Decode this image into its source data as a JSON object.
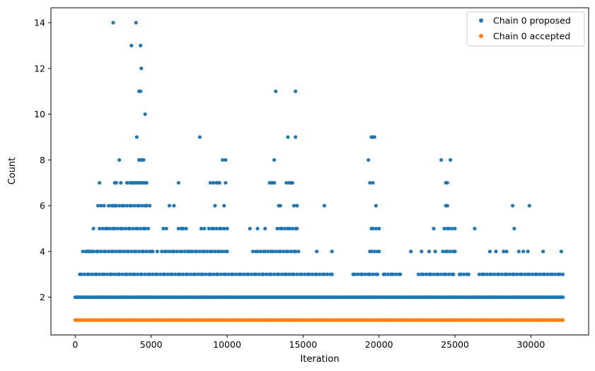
{
  "chart_data": {
    "type": "scatter",
    "title": "",
    "xlabel": "Iteration",
    "ylabel": "Count",
    "xlim": [
      -1600,
      33800
    ],
    "ylim": [
      0.35,
      14.65
    ],
    "xticks": [
      0,
      5000,
      10000,
      15000,
      20000,
      25000,
      30000
    ],
    "yticks": [
      2,
      4,
      6,
      8,
      10,
      12,
      14
    ],
    "grid": false,
    "legend_position": "top-right",
    "iterations_max": 32100,
    "series": [
      {
        "name": "Chain 0 proposed",
        "color": "#1f77b4",
        "baseline": {
          "x_range": [
            0,
            32100
          ],
          "values": [
            1,
            2
          ]
        },
        "bands": [
          {
            "value": 3,
            "x_ranges": [
              [
                200,
                15500
              ],
              [
                15600,
                17000
              ],
              [
                18200,
                20000
              ],
              [
                20300,
                21400
              ],
              [
                22500,
                25000
              ],
              [
                25300,
                26000
              ],
              [
                26500,
                32100
              ]
            ]
          },
          {
            "value": 4,
            "x_ranges": [
              [
                700,
                5000
              ],
              [
                5800,
                10000
              ],
              [
                11600,
                14700
              ],
              [
                19300,
                20000
              ],
              [
                24200,
                25000
              ]
            ]
          },
          {
            "value": 5,
            "x_ranges": [
              [
                1600,
                4800
              ],
              [
                6800,
                7300
              ],
              [
                8800,
                10000
              ],
              [
                13200,
                14600
              ],
              [
                19400,
                20000
              ],
              [
                24300,
                25000
              ]
            ]
          },
          {
            "value": 6,
            "x_ranges": [
              [
                2400,
                5000
              ],
              [
                14300,
                14600
              ]
            ]
          }
        ],
        "points": [
          {
            "x": 500,
            "y": 4
          },
          {
            "x": 800,
            "y": 4
          },
          {
            "x": 1100,
            "y": 4
          },
          {
            "x": 1200,
            "y": 5
          },
          {
            "x": 1500,
            "y": 6
          },
          {
            "x": 1600,
            "y": 7
          },
          {
            "x": 1700,
            "y": 6
          },
          {
            "x": 1900,
            "y": 6
          },
          {
            "x": 2100,
            "y": 5
          },
          {
            "x": 2200,
            "y": 6
          },
          {
            "x": 2500,
            "y": 6
          },
          {
            "x": 2600,
            "y": 7
          },
          {
            "x": 2700,
            "y": 7
          },
          {
            "x": 2900,
            "y": 8
          },
          {
            "x": 3000,
            "y": 7
          },
          {
            "x": 3400,
            "y": 7
          },
          {
            "x": 3600,
            "y": 7
          },
          {
            "x": 3700,
            "y": 7
          },
          {
            "x": 3800,
            "y": 7
          },
          {
            "x": 3900,
            "y": 7
          },
          {
            "x": 4000,
            "y": 7
          },
          {
            "x": 4100,
            "y": 7
          },
          {
            "x": 4200,
            "y": 7
          },
          {
            "x": 4300,
            "y": 7
          },
          {
            "x": 4400,
            "y": 7
          },
          {
            "x": 4500,
            "y": 7
          },
          {
            "x": 4600,
            "y": 7
          },
          {
            "x": 4700,
            "y": 7
          },
          {
            "x": 4200,
            "y": 8
          },
          {
            "x": 4300,
            "y": 8
          },
          {
            "x": 4400,
            "y": 8
          },
          {
            "x": 4500,
            "y": 8
          },
          {
            "x": 2500,
            "y": 14
          },
          {
            "x": 3700,
            "y": 13
          },
          {
            "x": 4000,
            "y": 14
          },
          {
            "x": 4050,
            "y": 9
          },
          {
            "x": 4200,
            "y": 11
          },
          {
            "x": 4300,
            "y": 11
          },
          {
            "x": 4300,
            "y": 13
          },
          {
            "x": 4350,
            "y": 12
          },
          {
            "x": 4600,
            "y": 10
          },
          {
            "x": 5100,
            "y": 4
          },
          {
            "x": 5400,
            "y": 4
          },
          {
            "x": 5700,
            "y": 4
          },
          {
            "x": 5800,
            "y": 5
          },
          {
            "x": 6000,
            "y": 5
          },
          {
            "x": 6200,
            "y": 6
          },
          {
            "x": 6500,
            "y": 6
          },
          {
            "x": 6800,
            "y": 7
          },
          {
            "x": 7000,
            "y": 5
          },
          {
            "x": 7600,
            "y": 4
          },
          {
            "x": 8200,
            "y": 9
          },
          {
            "x": 8300,
            "y": 5
          },
          {
            "x": 8500,
            "y": 5
          },
          {
            "x": 8900,
            "y": 7
          },
          {
            "x": 9100,
            "y": 7
          },
          {
            "x": 9200,
            "y": 6
          },
          {
            "x": 9300,
            "y": 7
          },
          {
            "x": 9400,
            "y": 7
          },
          {
            "x": 9500,
            "y": 7
          },
          {
            "x": 9700,
            "y": 8
          },
          {
            "x": 9800,
            "y": 6
          },
          {
            "x": 9900,
            "y": 8
          },
          {
            "x": 9900,
            "y": 7
          },
          {
            "x": 10000,
            "y": 5
          },
          {
            "x": 11500,
            "y": 5
          },
          {
            "x": 12000,
            "y": 5
          },
          {
            "x": 12500,
            "y": 5
          },
          {
            "x": 12800,
            "y": 7
          },
          {
            "x": 12900,
            "y": 7
          },
          {
            "x": 13000,
            "y": 7
          },
          {
            "x": 13100,
            "y": 8
          },
          {
            "x": 13100,
            "y": 7
          },
          {
            "x": 13200,
            "y": 11
          },
          {
            "x": 13400,
            "y": 6
          },
          {
            "x": 13500,
            "y": 6
          },
          {
            "x": 13900,
            "y": 7
          },
          {
            "x": 14000,
            "y": 9
          },
          {
            "x": 14000,
            "y": 5
          },
          {
            "x": 14100,
            "y": 7
          },
          {
            "x": 14200,
            "y": 7
          },
          {
            "x": 14300,
            "y": 7
          },
          {
            "x": 14500,
            "y": 9
          },
          {
            "x": 14500,
            "y": 11
          },
          {
            "x": 14600,
            "y": 6
          },
          {
            "x": 15900,
            "y": 4
          },
          {
            "x": 16400,
            "y": 6
          },
          {
            "x": 16900,
            "y": 4
          },
          {
            "x": 19300,
            "y": 8
          },
          {
            "x": 19400,
            "y": 7
          },
          {
            "x": 19500,
            "y": 9
          },
          {
            "x": 19600,
            "y": 9
          },
          {
            "x": 19700,
            "y": 9
          },
          {
            "x": 19600,
            "y": 7
          },
          {
            "x": 19800,
            "y": 6
          },
          {
            "x": 22100,
            "y": 4
          },
          {
            "x": 22800,
            "y": 4
          },
          {
            "x": 23300,
            "y": 4
          },
          {
            "x": 23600,
            "y": 5
          },
          {
            "x": 23700,
            "y": 4
          },
          {
            "x": 24100,
            "y": 8
          },
          {
            "x": 24400,
            "y": 7
          },
          {
            "x": 24500,
            "y": 7
          },
          {
            "x": 24400,
            "y": 6
          },
          {
            "x": 24500,
            "y": 6
          },
          {
            "x": 24700,
            "y": 8
          },
          {
            "x": 26300,
            "y": 5
          },
          {
            "x": 27300,
            "y": 4
          },
          {
            "x": 27700,
            "y": 4
          },
          {
            "x": 28200,
            "y": 4
          },
          {
            "x": 28400,
            "y": 4
          },
          {
            "x": 28800,
            "y": 6
          },
          {
            "x": 28900,
            "y": 5
          },
          {
            "x": 29200,
            "y": 4
          },
          {
            "x": 29500,
            "y": 4
          },
          {
            "x": 29900,
            "y": 6
          },
          {
            "x": 29800,
            "y": 4
          },
          {
            "x": 30800,
            "y": 4
          },
          {
            "x": 32000,
            "y": 4
          }
        ]
      },
      {
        "name": "Chain 0 accepted",
        "color": "#ff7f0e",
        "baseline": {
          "x_range": [
            0,
            32100
          ],
          "values": [
            1
          ]
        },
        "bands": [],
        "points": []
      }
    ]
  }
}
